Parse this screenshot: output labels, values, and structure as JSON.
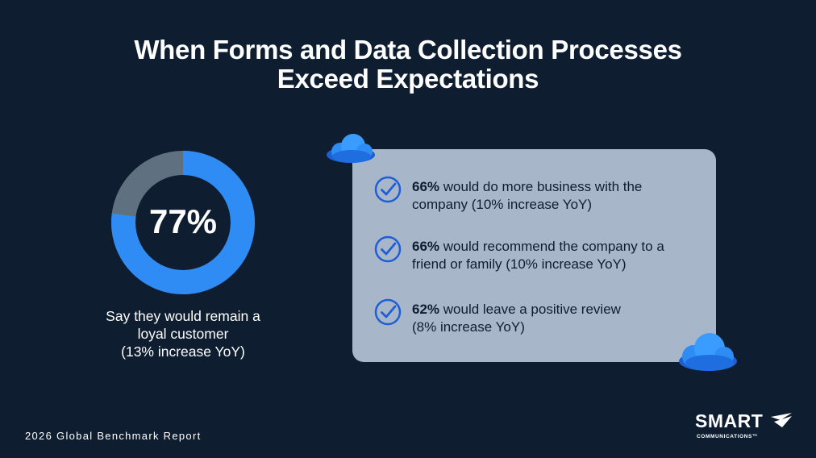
{
  "title": {
    "line1": "When Forms and Data Collection Processes",
    "line2": "Exceed Expectations"
  },
  "chart_data": {
    "type": "donut",
    "value": 77,
    "max": 100,
    "label": "77%",
    "caption_lines": [
      "Say they would remain a",
      "loyal customer",
      "(13% increase YoY)"
    ],
    "colors": {
      "filled": "#2f8cf5",
      "remainder": "#5f7180"
    }
  },
  "stats": [
    {
      "value": "66%",
      "line1_rest": " would do more business with the",
      "line2": "company (10% increase YoY)"
    },
    {
      "value": "66%",
      "line1_rest": " would recommend the company to a",
      "line2": "friend or family (10% increase YoY)"
    },
    {
      "value": "62%",
      "line1_rest": " would leave a positive review",
      "line2": "(8% increase YoY)"
    }
  ],
  "icons": {
    "check": "check-circle-icon",
    "cloud": "cloud-icon",
    "logo_mark": "paper-plane-icon"
  },
  "colors": {
    "background": "#0e1e30",
    "panel": "#a7b6c8",
    "accent": "#2f8cf5",
    "check": "#1f5fd6"
  },
  "footer": {
    "text": "2026 Global Benchmark Report"
  },
  "logo": {
    "word": "SMART",
    "sub": "COMMUNICATIONS™"
  }
}
